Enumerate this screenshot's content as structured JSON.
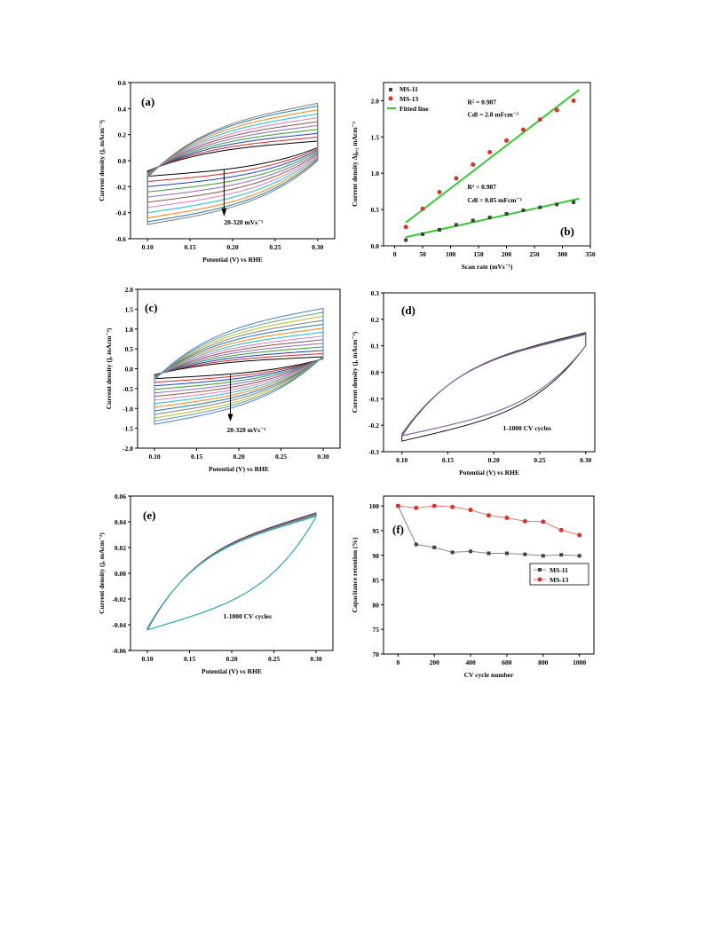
{
  "colors": {
    "cv_palette": [
      "#000000",
      "#d62728",
      "#1f3fbf",
      "#2ca02c",
      "#9467bd",
      "#8c564b",
      "#e377c2",
      "#17becf",
      "#ff7f0e",
      "#1f77b4",
      "#7f7f7f",
      "#bcbd22",
      "#5f9ea0",
      "#4a7fd0"
    ],
    "ms11": "#404040",
    "ms13": "#d9342b",
    "fit": "#33cc33"
  },
  "chart_data": [
    {
      "panel": "(a)",
      "type": "line",
      "xlabel": "Potential (V) vs RHE",
      "ylabel": "Current density (j, mAcm⁻²)",
      "xlim": [
        0.08,
        0.32
      ],
      "ylim": [
        -0.6,
        0.6
      ],
      "xticks": [
        "0.10",
        "0.15",
        "0.20",
        "0.25",
        "0.30"
      ],
      "yticks": [
        "-0.6",
        "-0.4",
        "-0.2",
        "0.0",
        "0.2",
        "0.4",
        "0.6"
      ],
      "series_count": 11,
      "scan_rates": [
        20,
        50,
        80,
        110,
        140,
        170,
        200,
        230,
        260,
        290,
        320
      ],
      "upper_end_values": [
        0.15,
        0.18,
        0.21,
        0.24,
        0.27,
        0.3,
        0.33,
        0.36,
        0.39,
        0.42,
        0.44
      ],
      "lower_start_values": [
        -0.12,
        -0.16,
        -0.2,
        -0.24,
        -0.28,
        -0.32,
        -0.36,
        -0.4,
        -0.44,
        -0.47,
        -0.49
      ],
      "annotation": "20-320 mVs⁻¹",
      "grid": false
    },
    {
      "panel": "(b)",
      "type": "scatter",
      "xlabel": "Scan rate (mVs⁻¹)",
      "ylabel": "Current density Δj₀.₂ mAcm⁻²",
      "xlim": [
        -20,
        350
      ],
      "ylim": [
        0.0,
        2.25
      ],
      "xticks": [
        "0",
        "50",
        "100",
        "150",
        "200",
        "250",
        "300",
        "350"
      ],
      "yticks": [
        "0.0",
        "0.5",
        "1.0",
        "1.5",
        "2.0"
      ],
      "series": [
        {
          "name": "MS-11",
          "x": [
            20,
            50,
            80,
            110,
            140,
            170,
            200,
            230,
            260,
            290,
            320
          ],
          "y": [
            0.08,
            0.16,
            0.22,
            0.29,
            0.35,
            0.39,
            0.44,
            0.49,
            0.53,
            0.57,
            0.6
          ]
        },
        {
          "name": "MS-13",
          "x": [
            20,
            50,
            80,
            110,
            140,
            170,
            200,
            230,
            260,
            290,
            320
          ],
          "y": [
            0.26,
            0.51,
            0.74,
            0.93,
            1.12,
            1.29,
            1.45,
            1.6,
            1.74,
            1.87,
            2.0
          ]
        }
      ],
      "fits": [
        {
          "name": "Fitted line",
          "x": [
            20,
            330
          ],
          "y": [
            0.32,
            2.15
          ]
        },
        {
          "name": "",
          "x": [
            20,
            330
          ],
          "y": [
            0.12,
            0.65
          ]
        }
      ],
      "legend_position": "top-left",
      "annotations": {
        "r2_top": "R² = 0.987",
        "cdl_top": "Cdl = 2.8 mFcm⁻²",
        "r2_bottom": "R² = 0.987",
        "cdl_bottom": "Cdl = 0.85 mFcm⁻²"
      },
      "grid": false
    },
    {
      "panel": "(c)",
      "type": "line",
      "xlabel": "Potential (V) vs RHE",
      "ylabel": "Current density (j, mAcm⁻²)",
      "xlim": [
        0.08,
        0.32
      ],
      "ylim": [
        -2.0,
        2.0
      ],
      "xticks": [
        "0.10",
        "0.15",
        "0.20",
        "0.25",
        "0.30"
      ],
      "yticks": [
        "-2.0",
        "-1.5",
        "-1.0",
        "-0.5",
        "0.0",
        "0.5",
        "1.0",
        "1.5",
        "2.0"
      ],
      "series_count": 14,
      "upper_end_values": [
        0.3,
        0.38,
        0.46,
        0.55,
        0.64,
        0.73,
        0.82,
        0.92,
        1.02,
        1.12,
        1.22,
        1.32,
        1.42,
        1.52
      ],
      "lower_start_values": [
        -0.25,
        -0.34,
        -0.43,
        -0.52,
        -0.61,
        -0.7,
        -0.79,
        -0.88,
        -0.97,
        -1.06,
        -1.15,
        -1.24,
        -1.32,
        -1.4
      ],
      "annotation": "20-320 mVs⁻¹",
      "grid": false
    },
    {
      "panel": "(d)",
      "type": "line",
      "xlabel": "Potential (V) vs RHE",
      "ylabel": "Current density (j, mAcm⁻²)",
      "xlim": [
        0.08,
        0.31
      ],
      "ylim": [
        -0.3,
        0.3
      ],
      "xticks": [
        "0.10",
        "0.15",
        "0.20",
        "0.25",
        "0.30"
      ],
      "yticks": [
        "-0.3",
        "-0.2",
        "-0.1",
        "0.0",
        "0.1",
        "0.2",
        "0.3"
      ],
      "upper_end_value": 0.15,
      "lower_start_value": -0.26,
      "annotation": "1-1000 CV cycles",
      "grid": false
    },
    {
      "panel": "(e)",
      "type": "line",
      "xlabel": "Potential (V) vs RHE",
      "ylabel": "Current density (j, mAcm⁻²)",
      "xlim": [
        0.08,
        0.32
      ],
      "ylim": [
        -0.06,
        0.06
      ],
      "xticks": [
        "0.10",
        "0.15",
        "0.20",
        "0.25",
        "0.30"
      ],
      "yticks": [
        "-0.06",
        "-0.04",
        "-0.02",
        "0.00",
        "0.02",
        "0.04",
        "0.06"
      ],
      "upper_end_value": 0.047,
      "lower_start_value": -0.044,
      "annotation": "1-1000 CV cycles",
      "grid": false
    },
    {
      "panel": "(f)",
      "type": "line",
      "xlabel": "CV cycle number",
      "ylabel": "Capacitance retention (%)",
      "xlim": [
        -80,
        1080
      ],
      "ylim": [
        70,
        102
      ],
      "xticks": [
        "0",
        "200",
        "400",
        "600",
        "800",
        "1000"
      ],
      "yticks": [
        "70",
        "75",
        "80",
        "85",
        "90",
        "95",
        "100"
      ],
      "series": [
        {
          "name": "MS-11",
          "x": [
            0,
            100,
            200,
            300,
            400,
            500,
            600,
            700,
            800,
            900,
            1000
          ],
          "y": [
            100,
            92.2,
            91.6,
            90.6,
            90.8,
            90.4,
            90.4,
            90.2,
            89.9,
            90.1,
            89.9
          ]
        },
        {
          "name": "MS-13",
          "x": [
            0,
            100,
            200,
            300,
            400,
            500,
            600,
            700,
            800,
            900,
            1000
          ],
          "y": [
            100,
            99.6,
            100,
            99.8,
            99.2,
            98.1,
            97.6,
            96.9,
            96.8,
            95.1,
            94.1
          ]
        }
      ],
      "legend_position": "right-middle",
      "grid": false
    }
  ]
}
